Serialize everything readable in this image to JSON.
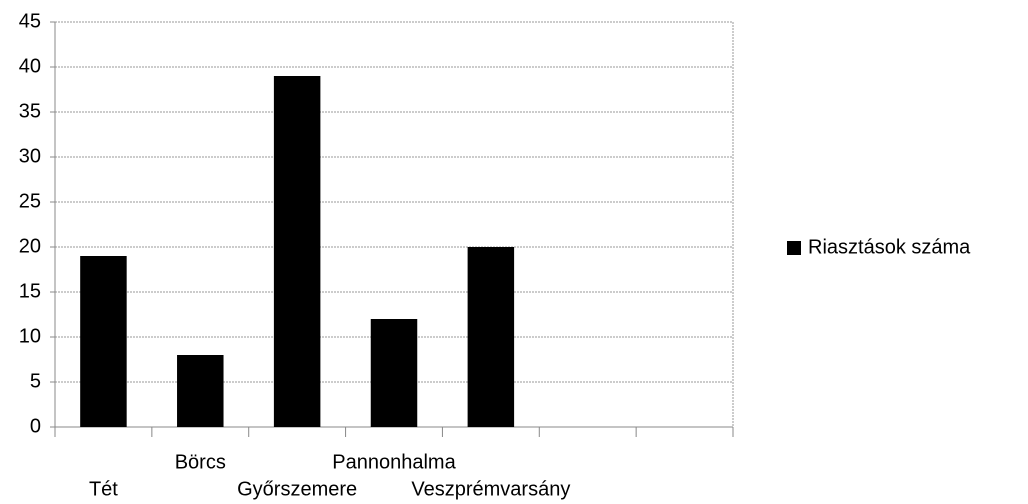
{
  "chart_data": {
    "type": "bar",
    "categories": [
      "Tét",
      "Börcs",
      "Győrszemere",
      "Pannonhalma",
      "Veszprémvarsány",
      null,
      null
    ],
    "series": [
      {
        "name": "Riasztások száma",
        "color": "#000000",
        "values": [
          19,
          8,
          39,
          12,
          20,
          null,
          null
        ]
      }
    ],
    "ylim": [
      0,
      45
    ],
    "yticks": [
      0,
      5,
      10,
      15,
      20,
      25,
      30,
      35,
      40,
      45
    ],
    "grid": true,
    "legend": "right"
  }
}
